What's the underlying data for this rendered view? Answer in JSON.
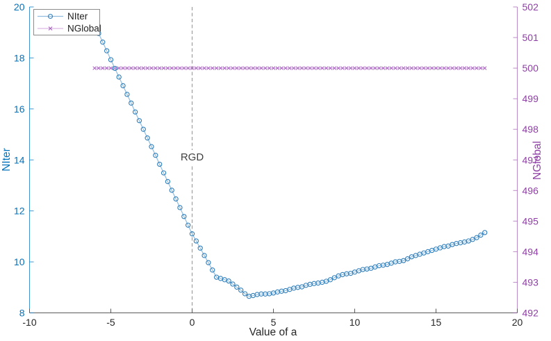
{
  "figure": {
    "background": "#ffffff",
    "colors": {
      "left_axis_blue": "#0072BD",
      "right_axis_purple": "#8E3FA5",
      "x_axis_dark": "#262626",
      "dashed_gray": "#909090",
      "legend_border": "#7f7f7f"
    }
  },
  "chart_data": {
    "type": "line",
    "title": "",
    "xlabel": "Value of a",
    "xlim": [
      -10,
      20
    ],
    "xticks": [
      -10,
      -5,
      0,
      5,
      10,
      15,
      20
    ],
    "grid": false,
    "legend_position": "top-left",
    "axes": {
      "left": {
        "label": "NIter",
        "ylim": [
          8,
          20
        ],
        "yticks": [
          8,
          10,
          12,
          14,
          16,
          18,
          20
        ],
        "color": "#0072BD"
      },
      "right": {
        "label": "NGlobal",
        "ylim": [
          492,
          502
        ],
        "yticks": [
          492,
          493,
          494,
          495,
          496,
          497,
          498,
          499,
          500,
          501,
          502
        ],
        "color": "#8E3FA5"
      }
    },
    "vline": {
      "x": 0,
      "label": "RGD",
      "style": "dashed",
      "color": "#909090"
    },
    "series": [
      {
        "name": "NIter",
        "axis": "left",
        "marker": "circle",
        "line_color": "#8FBCDF",
        "marker_color": "#2E7EBB",
        "x": [
          -6,
          -5.75,
          -5.5,
          -5.25,
          -5,
          -4.75,
          -4.5,
          -4.25,
          -4,
          -3.75,
          -3.5,
          -3.25,
          -3,
          -2.75,
          -2.5,
          -2.25,
          -2,
          -1.75,
          -1.5,
          -1.25,
          -1,
          -0.75,
          -0.5,
          -0.25,
          0,
          0.25,
          0.5,
          0.75,
          1,
          1.25,
          1.5,
          1.75,
          2,
          2.25,
          2.5,
          2.75,
          3,
          3.25,
          3.5,
          3.75,
          4,
          4.25,
          4.5,
          4.75,
          5,
          5.25,
          5.5,
          5.75,
          6,
          6.25,
          6.5,
          6.75,
          7,
          7.25,
          7.5,
          7.75,
          8,
          8.25,
          8.5,
          8.75,
          9,
          9.25,
          9.5,
          9.75,
          10,
          10.25,
          10.5,
          10.75,
          11,
          11.25,
          11.5,
          11.75,
          12,
          12.25,
          12.5,
          12.75,
          13,
          13.25,
          13.5,
          13.75,
          14,
          14.25,
          14.5,
          14.75,
          15,
          15.25,
          15.5,
          15.75,
          16,
          16.25,
          16.5,
          16.75,
          17,
          17.25,
          17.5,
          17.75,
          18
        ],
        "y": [
          19.3,
          18.96,
          18.62,
          18.28,
          17.93,
          17.59,
          17.25,
          16.91,
          16.57,
          16.23,
          15.88,
          15.54,
          15.2,
          14.86,
          14.52,
          14.18,
          13.83,
          13.49,
          13.15,
          12.81,
          12.47,
          12.13,
          11.78,
          11.44,
          11.1,
          10.82,
          10.54,
          10.25,
          9.97,
          9.68,
          9.4,
          9.35,
          9.3,
          9.25,
          9.13,
          9.01,
          8.89,
          8.75,
          8.65,
          8.68,
          8.72,
          8.74,
          8.74,
          8.75,
          8.78,
          8.82,
          8.85,
          8.87,
          8.92,
          8.97,
          9.0,
          9.02,
          9.08,
          9.12,
          9.15,
          9.17,
          9.2,
          9.24,
          9.3,
          9.38,
          9.45,
          9.5,
          9.53,
          9.55,
          9.6,
          9.65,
          9.7,
          9.72,
          9.75,
          9.8,
          9.85,
          9.87,
          9.9,
          9.95,
          10.0,
          10.02,
          10.05,
          10.12,
          10.2,
          10.25,
          10.3,
          10.35,
          10.4,
          10.45,
          10.5,
          10.55,
          10.6,
          10.62,
          10.68,
          10.72,
          10.75,
          10.78,
          10.82,
          10.88,
          10.95,
          11.05,
          11.15
        ]
      },
      {
        "name": "NGlobal",
        "axis": "right",
        "marker": "x",
        "line_color": "#D9B8E3",
        "marker_color": "#A961C2",
        "x": [
          -6,
          -5.75,
          -5.5,
          -5.25,
          -5,
          -4.75,
          -4.5,
          -4.25,
          -4,
          -3.75,
          -3.5,
          -3.25,
          -3,
          -2.75,
          -2.5,
          -2.25,
          -2,
          -1.75,
          -1.5,
          -1.25,
          -1,
          -0.75,
          -0.5,
          -0.25,
          0,
          0.25,
          0.5,
          0.75,
          1,
          1.25,
          1.5,
          1.75,
          2,
          2.25,
          2.5,
          2.75,
          3,
          3.25,
          3.5,
          3.75,
          4,
          4.25,
          4.5,
          4.75,
          5,
          5.25,
          5.5,
          5.75,
          6,
          6.25,
          6.5,
          6.75,
          7,
          7.25,
          7.5,
          7.75,
          8,
          8.25,
          8.5,
          8.75,
          9,
          9.25,
          9.5,
          9.75,
          10,
          10.25,
          10.5,
          10.75,
          11,
          11.25,
          11.5,
          11.75,
          12,
          12.25,
          12.5,
          12.75,
          13,
          13.25,
          13.5,
          13.75,
          14,
          14.25,
          14.5,
          14.75,
          15,
          15.25,
          15.5,
          15.75,
          16,
          16.25,
          16.5,
          16.75,
          17,
          17.25,
          17.5,
          17.75,
          18
        ],
        "y": [
          500,
          500,
          500,
          500,
          500,
          500,
          500,
          500,
          500,
          500,
          500,
          500,
          500,
          500,
          500,
          500,
          500,
          500,
          500,
          500,
          500,
          500,
          500,
          500,
          500,
          500,
          500,
          500,
          500,
          500,
          500,
          500,
          500,
          500,
          500,
          500,
          500,
          500,
          500,
          500,
          500,
          500,
          500,
          500,
          500,
          500,
          500,
          500,
          500,
          500,
          500,
          500,
          500,
          500,
          500,
          500,
          500,
          500,
          500,
          500,
          500,
          500,
          500,
          500,
          500,
          500,
          500,
          500,
          500,
          500,
          500,
          500,
          500,
          500,
          500,
          500,
          500,
          500,
          500,
          500,
          500,
          500,
          500,
          500,
          500,
          500,
          500,
          500,
          500,
          500,
          500,
          500,
          500,
          500,
          500,
          500,
          500
        ]
      }
    ]
  },
  "legend": {
    "items": [
      {
        "label": "NIter"
      },
      {
        "label": "NGlobal"
      }
    ]
  }
}
